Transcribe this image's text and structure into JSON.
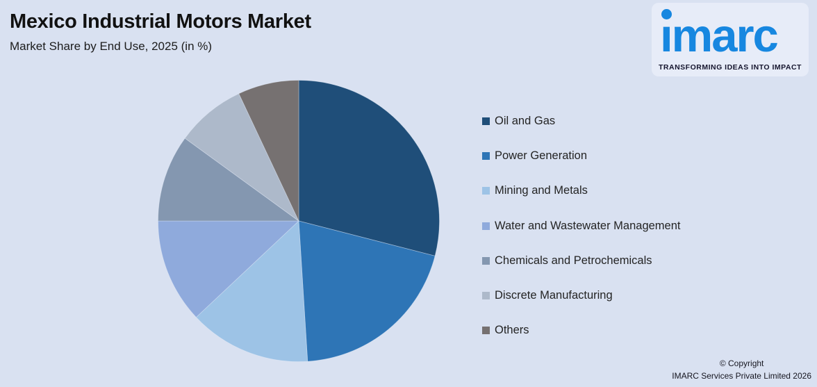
{
  "header": {
    "title": "Mexico Industrial Motors Market",
    "subtitle": "Market Share by End Use, 2025 (in %)"
  },
  "logo": {
    "brand": "imarc",
    "tagline": "TRANSFORMING IDEAS INTO IMPACT",
    "brand_color": "#1787e0"
  },
  "chart_data": {
    "type": "pie",
    "title": "Mexico Industrial Motors Market",
    "subtitle": "Market Share by End Use, 2025 (in %)",
    "unit": "%",
    "categories": [
      "Oil and Gas",
      "Power Generation",
      "Mining and Metals",
      "Water and Wastewater Management",
      "Chemicals and Petrochemicals",
      "Discrete Manufacturing",
      "Others"
    ],
    "values": [
      29,
      20,
      14,
      12,
      10,
      8,
      7
    ],
    "colors": [
      "#1F4E79",
      "#2E75B6",
      "#9DC3E6",
      "#8FAADC",
      "#8497B0",
      "#ADB9CA",
      "#767171"
    ],
    "legend_position": "right",
    "start_angle_deg": 0,
    "direction": "clockwise",
    "data_labels": false
  },
  "footer": {
    "copyright_line1": "© Copyright",
    "copyright_line2": "IMARC Services Private Limited 2026"
  }
}
